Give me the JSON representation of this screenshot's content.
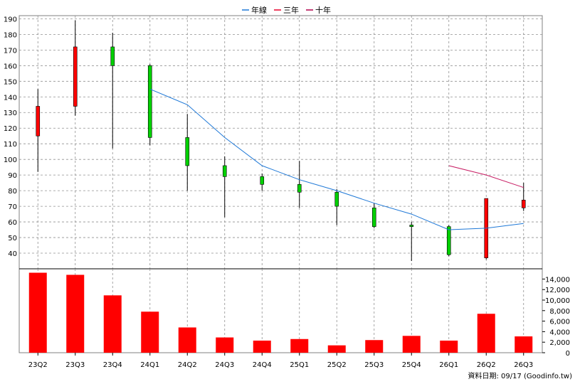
{
  "legend": [
    {
      "label": "年線",
      "color": "#1e78d7"
    },
    {
      "label": "三年",
      "color": "#e8002a"
    },
    {
      "label": "十年",
      "color": "#b0004a"
    }
  ],
  "footer": {
    "source": "資料日期: 09/17  (Goodinfo.tw)"
  },
  "colors": {
    "up": "#ff0000",
    "down": "#00d000",
    "ma1": "#1e78d7",
    "ma3": "#c81e64",
    "volume": "#ff0000",
    "grid": "#909090"
  },
  "chart_data": [
    {
      "type": "candlestick",
      "categories": [
        "23Q2",
        "23Q3",
        "23Q4",
        "24Q1",
        "24Q2",
        "24Q3",
        "24Q4",
        "25Q1",
        "25Q2",
        "25Q3",
        "25Q4",
        "26Q1",
        "26Q2",
        "26Q3"
      ],
      "ylim": [
        30,
        192
      ],
      "yticks": [
        40,
        50,
        60,
        70,
        80,
        90,
        100,
        110,
        120,
        130,
        140,
        150,
        160,
        170,
        180,
        190
      ],
      "grid": true,
      "legend_position": "top-center",
      "ohlc": [
        {
          "open": 115,
          "high": 145,
          "low": 92,
          "close": 134
        },
        {
          "open": 134,
          "high": 189,
          "low": 128,
          "close": 172
        },
        {
          "open": 172,
          "high": 181,
          "low": 107,
          "close": 160
        },
        {
          "open": 160,
          "high": 161,
          "low": 109,
          "close": 114
        },
        {
          "open": 114,
          "high": 129,
          "low": 80,
          "close": 96
        },
        {
          "open": 96,
          "high": 102,
          "low": 63,
          "close": 89
        },
        {
          "open": 89,
          "high": 91,
          "low": 80,
          "close": 84
        },
        {
          "open": 84,
          "high": 99,
          "low": 69,
          "close": 79
        },
        {
          "open": 79,
          "high": 81,
          "low": 58,
          "close": 70
        },
        {
          "open": 69,
          "high": 72,
          "low": 56,
          "close": 57
        },
        {
          "open": 58,
          "high": 60,
          "low": 35,
          "close": 57
        },
        {
          "open": 57,
          "high": 58,
          "low": 38,
          "close": 39
        },
        {
          "open": 37,
          "high": 75,
          "low": 36,
          "close": 75
        },
        {
          "open": 69,
          "high": 85,
          "low": 67,
          "close": 74
        }
      ],
      "series": [
        {
          "name": "年線",
          "values": [
            null,
            null,
            null,
            145,
            135,
            114,
            96,
            87,
            80,
            72,
            65,
            55,
            56,
            59
          ]
        },
        {
          "name": "三年",
          "values": [
            null,
            null,
            null,
            null,
            null,
            null,
            null,
            null,
            null,
            null,
            null,
            96,
            90,
            82
          ]
        }
      ]
    },
    {
      "type": "bar",
      "categories": [
        "23Q2",
        "23Q3",
        "23Q4",
        "24Q1",
        "24Q2",
        "24Q3",
        "24Q4",
        "25Q1",
        "25Q2",
        "25Q3",
        "25Q4",
        "26Q1",
        "26Q2",
        "26Q3"
      ],
      "values": [
        15200,
        14800,
        10900,
        7800,
        4800,
        2900,
        2300,
        2600,
        1400,
        2400,
        3200,
        2300,
        7400,
        3100
      ],
      "ylim": [
        0,
        15000
      ],
      "yticks": [
        0,
        2000,
        4000,
        6000,
        8000,
        10000,
        12000,
        14000
      ],
      "ytick_labels": [
        "0",
        "2,000",
        "4,000",
        "6,000",
        "8,000",
        "10,000",
        "12,000",
        "14,000"
      ]
    }
  ]
}
